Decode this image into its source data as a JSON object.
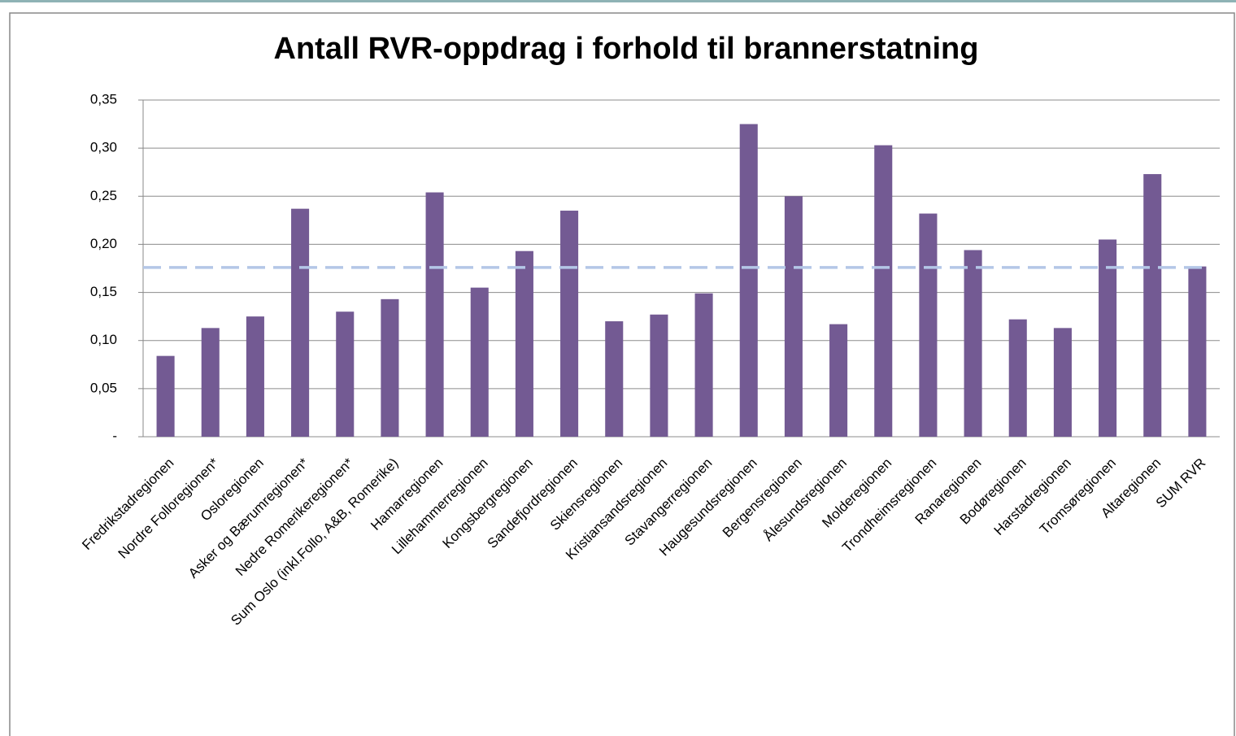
{
  "chart_data": {
    "type": "bar",
    "title": "Antall RVR-oppdrag i forhold til brannerstatning",
    "categories": [
      "Fredrikstadregionen",
      "Nordre Folloregionen*",
      "Osloregionen",
      "Asker og Bærumregionen*",
      "Nedre Romerikeregionen*",
      "Sum Oslo (inkl.Follo, A&B, Romerike)",
      "Hamarregionen",
      "Lillehammerregionen",
      "Kongsbergregionen",
      "Sandefjordregionen",
      "Skiensregionen",
      "Kristiansandsregionen",
      "Stavangerregionen",
      "Haugesundsregionen",
      "Bergensregionen",
      "Ålesundsregionen",
      "Molderegionen",
      "Trondheimsregionen",
      "Ranaregionen",
      "Bodøregionen",
      "Harstadregionen",
      "Tromsøregionen",
      "Altaregionen",
      "SUM RVR"
    ],
    "values": [
      0.084,
      0.113,
      0.125,
      0.237,
      0.13,
      0.143,
      0.254,
      0.155,
      0.193,
      0.235,
      0.12,
      0.127,
      0.149,
      0.325,
      0.25,
      0.117,
      0.303,
      0.232,
      0.194,
      0.122,
      0.113,
      0.205,
      0.273,
      0.177
    ],
    "color": "#735a93",
    "reference_line": {
      "value": 0.176,
      "color": "#b4c7e7",
      "dashed": true
    },
    "ylim": [
      0,
      0.35
    ],
    "yticks": [
      {
        "value": 0,
        "label": "-"
      },
      {
        "value": 0.05,
        "label": "0,05"
      },
      {
        "value": 0.1,
        "label": "0,10"
      },
      {
        "value": 0.15,
        "label": "0,15"
      },
      {
        "value": 0.2,
        "label": "0,20"
      },
      {
        "value": 0.25,
        "label": "0,25"
      },
      {
        "value": 0.3,
        "label": "0,30"
      },
      {
        "value": 0.35,
        "label": "0,35"
      }
    ],
    "grid": true
  }
}
